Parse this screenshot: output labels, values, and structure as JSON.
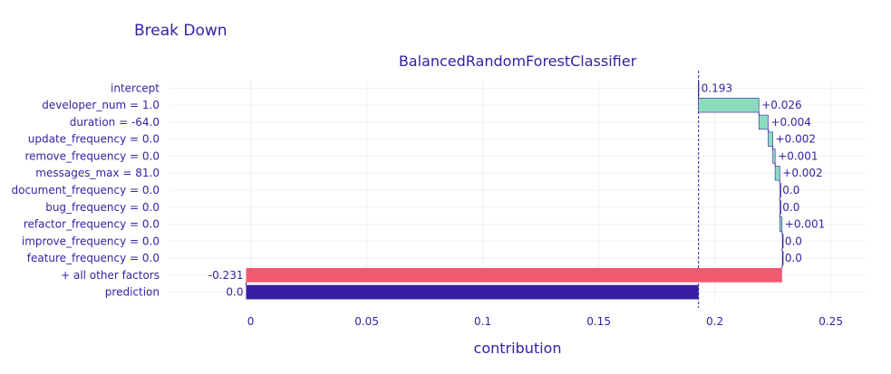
{
  "chart_data": {
    "type": "waterfall",
    "title": "Break Down",
    "subtitle": "BalancedRandomForestClassifier",
    "xlabel": "contribution",
    "xlim": [
      -0.035,
      0.265
    ],
    "xticks": [
      0,
      0.05,
      0.1,
      0.15,
      0.2,
      0.25
    ],
    "xtick_labels": [
      "0",
      "0.05",
      "0.1",
      "0.15",
      "0.2",
      "0.25"
    ],
    "grid": true,
    "reference_line": 0.193,
    "colors": {
      "title": "#371ea3",
      "positive": "#8bdcbe",
      "negative": "#f05a71",
      "prediction": "#371ea3",
      "connector": "#371ea3",
      "grid": "#f0f0f4"
    },
    "rows": [
      {
        "label": "intercept",
        "start": 0,
        "end": 0.193,
        "kind": "intercept",
        "value_label": "0.193"
      },
      {
        "label": "developer_num = 1.0",
        "start": 0.193,
        "end": 0.219,
        "kind": "positive",
        "value_label": "+0.026"
      },
      {
        "label": "duration = -64.0",
        "start": 0.219,
        "end": 0.223,
        "kind": "positive",
        "value_label": "+0.004"
      },
      {
        "label": "update_frequency = 0.0",
        "start": 0.223,
        "end": 0.225,
        "kind": "positive",
        "value_label": "+0.002"
      },
      {
        "label": "remove_frequency = 0.0",
        "start": 0.225,
        "end": 0.226,
        "kind": "positive",
        "value_label": "+0.001"
      },
      {
        "label": "messages_max = 81.0",
        "start": 0.226,
        "end": 0.228,
        "kind": "positive",
        "value_label": "+0.002"
      },
      {
        "label": "document_frequency = 0.0",
        "start": 0.228,
        "end": 0.228,
        "kind": "zero",
        "value_label": "0.0"
      },
      {
        "label": "bug_frequency = 0.0",
        "start": 0.228,
        "end": 0.228,
        "kind": "zero",
        "value_label": "0.0"
      },
      {
        "label": "refactor_frequency = 0.0",
        "start": 0.228,
        "end": 0.229,
        "kind": "positive",
        "value_label": "+0.001"
      },
      {
        "label": "improve_frequency = 0.0",
        "start": 0.229,
        "end": 0.229,
        "kind": "zero",
        "value_label": "0.0"
      },
      {
        "label": "feature_frequency = 0.0",
        "start": 0.229,
        "end": 0.229,
        "kind": "zero",
        "value_label": "0.0"
      },
      {
        "label": "+ all other factors",
        "start": 0.229,
        "end": -0.002,
        "kind": "negative",
        "value_label": "-0.231"
      },
      {
        "label": "prediction",
        "start": -0.002,
        "end": 0.193,
        "kind": "prediction",
        "value_label": "0.0"
      }
    ]
  }
}
